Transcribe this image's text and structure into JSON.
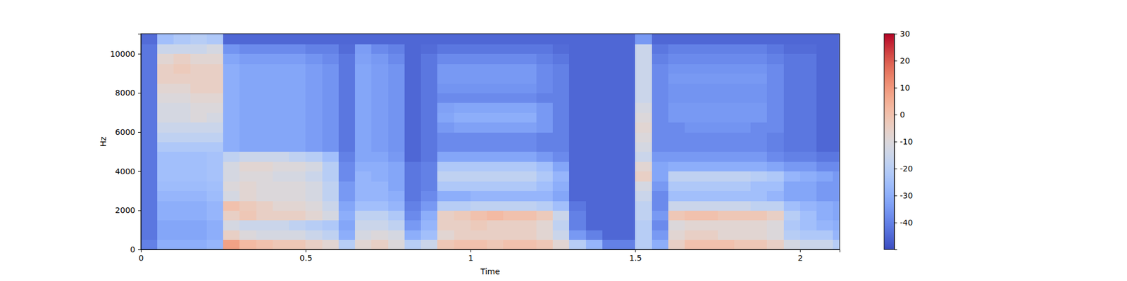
{
  "chart_data": {
    "type": "heatmap",
    "xlabel": "Time",
    "ylabel": "Hz",
    "xlim": [
      0,
      2.12
    ],
    "xticks": [
      0,
      0.5,
      1,
      1.5,
      2
    ],
    "ylim": [
      0,
      11025
    ],
    "yticks": [
      0,
      2000,
      4000,
      6000,
      8000,
      10000
    ],
    "grid": false,
    "x_bins": [
      0,
      0.05,
      0.1,
      0.15,
      0.2,
      0.25,
      0.3,
      0.35,
      0.4,
      0.45,
      0.5,
      0.55,
      0.6,
      0.65,
      0.7,
      0.75,
      0.8,
      0.85,
      0.9,
      0.95,
      1,
      1.05,
      1.1,
      1.15,
      1.2,
      1.25,
      1.3,
      1.35,
      1.4,
      1.45,
      1.5,
      1.55,
      1.6,
      1.65,
      1.7,
      1.75,
      1.8,
      1.85,
      1.9,
      1.95,
      2,
      2.05,
      2.1,
      2.12
    ],
    "y_bins": [
      0,
      500,
      1000,
      1500,
      2000,
      2500,
      3000,
      3500,
      4000,
      4500,
      5000,
      5500,
      6000,
      6500,
      7000,
      7500,
      8000,
      8500,
      9000,
      9500,
      10000,
      10500,
      11000,
      11025
    ],
    "cells": [
      [
        -40,
        -30,
        -30,
        -30,
        -28,
        8,
        2,
        0,
        -2,
        -2,
        -5,
        -8,
        -20,
        -8,
        -5,
        -10,
        -20,
        -15,
        -2,
        0,
        0,
        -2,
        0,
        0,
        -2,
        -8,
        -20,
        -28,
        -40,
        -40,
        -20,
        -30,
        -5,
        0,
        0,
        0,
        -2,
        -2,
        -5,
        -12,
        -15,
        -15,
        -20
      ],
      [
        -42,
        -32,
        -32,
        -32,
        -30,
        -5,
        -10,
        -12,
        -12,
        -12,
        -15,
        -18,
        -30,
        -12,
        -10,
        -12,
        -30,
        -25,
        -8,
        -5,
        -5,
        -5,
        -5,
        -5,
        -8,
        -15,
        -35,
        -40,
        -45,
        -45,
        -20,
        -35,
        -8,
        -5,
        -5,
        -8,
        -8,
        -8,
        -10,
        -20,
        -22,
        -22,
        -28
      ],
      [
        -42,
        -32,
        -32,
        -32,
        -30,
        -12,
        -15,
        -15,
        -15,
        -18,
        -20,
        -22,
        -32,
        -15,
        -15,
        -18,
        -35,
        -28,
        -5,
        -5,
        -3,
        -5,
        -5,
        -5,
        -8,
        -18,
        -40,
        -45,
        -45,
        -45,
        -20,
        -38,
        -10,
        -8,
        -8,
        -8,
        -8,
        -8,
        -10,
        -22,
        -25,
        -28,
        -30
      ],
      [
        -42,
        -30,
        -30,
        -30,
        -28,
        -5,
        -2,
        -5,
        -5,
        -5,
        -8,
        -12,
        -30,
        -18,
        -18,
        -22,
        -38,
        -30,
        -5,
        -3,
        0,
        2,
        0,
        0,
        -3,
        -15,
        -40,
        -45,
        -45,
        -45,
        -18,
        -35,
        -2,
        0,
        0,
        -2,
        -2,
        -2,
        -5,
        -20,
        -25,
        -30,
        -32
      ],
      [
        -42,
        -30,
        -30,
        -30,
        -28,
        0,
        -3,
        -5,
        -8,
        -8,
        -10,
        -15,
        -32,
        -25,
        -25,
        -28,
        -40,
        -35,
        -20,
        -20,
        -18,
        -18,
        -18,
        -18,
        -20,
        -25,
        -42,
        -45,
        -45,
        -45,
        -18,
        -38,
        -15,
        -15,
        -15,
        -15,
        -15,
        -18,
        -18,
        -25,
        -28,
        -30,
        -32
      ],
      [
        -42,
        -28,
        -28,
        -28,
        -26,
        -12,
        -8,
        -10,
        -10,
        -10,
        -12,
        -18,
        -35,
        -28,
        -28,
        -30,
        -42,
        -38,
        -30,
        -30,
        -28,
        -28,
        -28,
        -28,
        -28,
        -32,
        -45,
        -45,
        -45,
        -45,
        -15,
        -38,
        -25,
        -25,
        -25,
        -25,
        -25,
        -25,
        -28,
        -32,
        -32,
        -35,
        -35
      ],
      [
        -42,
        -26,
        -26,
        -26,
        -25,
        -10,
        -8,
        -10,
        -10,
        -10,
        -12,
        -18,
        -35,
        -28,
        -28,
        -32,
        -42,
        -40,
        -22,
        -22,
        -22,
        -22,
        -22,
        -22,
        -25,
        -30,
        -45,
        -45,
        -45,
        -45,
        -12,
        -35,
        -22,
        -22,
        -22,
        -22,
        -22,
        -25,
        -25,
        -32,
        -32,
        -35,
        -35
      ],
      [
        -42,
        -25,
        -25,
        -25,
        -24,
        -12,
        -10,
        -10,
        -12,
        -12,
        -15,
        -20,
        -38,
        -28,
        -30,
        -32,
        -42,
        -40,
        -18,
        -18,
        -18,
        -18,
        -18,
        -18,
        -22,
        -28,
        -45,
        -45,
        -45,
        -45,
        -5,
        -32,
        -18,
        -18,
        -18,
        -18,
        -18,
        -20,
        -22,
        -28,
        -30,
        -32,
        -35
      ],
      [
        -42,
        -25,
        -25,
        -25,
        -24,
        -12,
        -8,
        -8,
        -10,
        -10,
        -12,
        -20,
        -38,
        -30,
        -30,
        -32,
        -42,
        -40,
        -22,
        -22,
        -22,
        -22,
        -22,
        -22,
        -25,
        -32,
        -45,
        -45,
        -45,
        -45,
        -8,
        -32,
        -30,
        -30,
        -30,
        -30,
        -30,
        -30,
        -32,
        -35,
        -35,
        -38,
        -38
      ],
      [
        -42,
        -25,
        -25,
        -25,
        -24,
        -18,
        -15,
        -15,
        -15,
        -18,
        -20,
        -25,
        -40,
        -32,
        -32,
        -35,
        -45,
        -42,
        -32,
        -32,
        -32,
        -32,
        -32,
        -32,
        -35,
        -38,
        -45,
        -45,
        -45,
        -45,
        -15,
        -35,
        -35,
        -35,
        -35,
        -35,
        -35,
        -35,
        -38,
        -40,
        -40,
        -42,
        -42
      ],
      [
        -42,
        -22,
        -22,
        -22,
        -22,
        -30,
        -32,
        -32,
        -32,
        -32,
        -34,
        -36,
        -42,
        -32,
        -34,
        -36,
        -45,
        -42,
        -38,
        -38,
        -38,
        -38,
        -38,
        -38,
        -40,
        -40,
        -45,
        -45,
        -45,
        -45,
        -12,
        -38,
        -38,
        -38,
        -38,
        -38,
        -38,
        -38,
        -40,
        -42,
        -42,
        -45,
        -45
      ],
      [
        -42,
        -18,
        -18,
        -18,
        -18,
        -30,
        -32,
        -32,
        -32,
        -32,
        -34,
        -36,
        -42,
        -32,
        -34,
        -36,
        -45,
        -42,
        -38,
        -38,
        -38,
        -38,
        -38,
        -38,
        -40,
        -40,
        -45,
        -45,
        -45,
        -45,
        -10,
        -38,
        -38,
        -38,
        -38,
        -38,
        -38,
        -38,
        -40,
        -42,
        -42,
        -45,
        -45
      ],
      [
        -42,
        -15,
        -15,
        -15,
        -15,
        -30,
        -32,
        -32,
        -32,
        -32,
        -34,
        -36,
        -42,
        -32,
        -34,
        -36,
        -45,
        -42,
        -35,
        -33,
        -33,
        -33,
        -33,
        -33,
        -35,
        -40,
        -45,
        -45,
        -45,
        -45,
        -8,
        -38,
        -38,
        -36,
        -36,
        -36,
        -36,
        -38,
        -38,
        -42,
        -42,
        -45,
        -45
      ],
      [
        -42,
        -12,
        -12,
        -10,
        -12,
        -30,
        -32,
        -32,
        -32,
        -32,
        -34,
        -36,
        -42,
        -32,
        -34,
        -36,
        -45,
        -42,
        -32,
        -30,
        -30,
        -30,
        -30,
        -30,
        -35,
        -40,
        -45,
        -45,
        -45,
        -45,
        -10,
        -38,
        -35,
        -35,
        -35,
        -35,
        -35,
        -35,
        -38,
        -42,
        -42,
        -45,
        -45
      ],
      [
        -42,
        -12,
        -12,
        -10,
        -10,
        -30,
        -32,
        -32,
        -32,
        -32,
        -34,
        -36,
        -42,
        -32,
        -34,
        -36,
        -45,
        -42,
        -33,
        -32,
        -32,
        -32,
        -32,
        -32,
        -35,
        -40,
        -45,
        -45,
        -45,
        -45,
        -12,
        -38,
        -35,
        -35,
        -35,
        -35,
        -35,
        -35,
        -38,
        -42,
        -42,
        -45,
        -45
      ],
      [
        -42,
        -10,
        -10,
        -8,
        -8,
        -30,
        -32,
        -32,
        -32,
        -32,
        -34,
        -36,
        -42,
        -32,
        -34,
        -36,
        -45,
        -42,
        -38,
        -38,
        -38,
        -38,
        -38,
        -38,
        -40,
        -40,
        -45,
        -45,
        -45,
        -45,
        -15,
        -38,
        -36,
        -36,
        -36,
        -36,
        -36,
        -36,
        -38,
        -42,
        -42,
        -45,
        -45
      ],
      [
        -42,
        -8,
        -8,
        -5,
        -5,
        -30,
        -32,
        -32,
        -32,
        -32,
        -34,
        -36,
        -42,
        -32,
        -34,
        -36,
        -45,
        -42,
        -36,
        -36,
        -36,
        -36,
        -36,
        -36,
        -38,
        -40,
        -45,
        -45,
        -45,
        -45,
        -15,
        -38,
        -36,
        -36,
        -36,
        -36,
        -36,
        -36,
        -38,
        -42,
        -42,
        -45,
        -45
      ],
      [
        -42,
        -5,
        -5,
        -5,
        -5,
        -30,
        -32,
        -32,
        -32,
        -32,
        -34,
        -36,
        -42,
        -32,
        -34,
        -36,
        -45,
        -42,
        -35,
        -35,
        -35,
        -35,
        -35,
        -35,
        -38,
        -40,
        -45,
        -45,
        -45,
        -45,
        -15,
        -38,
        -35,
        -35,
        -35,
        -35,
        -35,
        -35,
        -38,
        -42,
        -42,
        -45,
        -45
      ],
      [
        -42,
        -5,
        -3,
        -5,
        -5,
        -30,
        -32,
        -32,
        -32,
        -32,
        -34,
        -36,
        -42,
        -32,
        -34,
        -36,
        -45,
        -42,
        -35,
        -35,
        -35,
        -35,
        -35,
        -35,
        -38,
        -40,
        -45,
        -45,
        -45,
        -45,
        -15,
        -38,
        -36,
        -36,
        -36,
        -36,
        -36,
        -36,
        -38,
        -42,
        -42,
        -45,
        -45
      ],
      [
        -42,
        -8,
        -5,
        -8,
        -8,
        -32,
        -34,
        -34,
        -34,
        -34,
        -36,
        -38,
        -42,
        -33,
        -35,
        -38,
        -45,
        -42,
        -38,
        -38,
        -38,
        -38,
        -38,
        -38,
        -40,
        -42,
        -45,
        -45,
        -45,
        -45,
        -15,
        -40,
        -38,
        -38,
        -38,
        -38,
        -38,
        -38,
        -40,
        -42,
        -42,
        -45,
        -45
      ],
      [
        -42,
        -15,
        -15,
        -15,
        -12,
        -36,
        -38,
        -38,
        -38,
        -38,
        -40,
        -40,
        -44,
        -34,
        -38,
        -40,
        -45,
        -44,
        -42,
        -42,
        -42,
        -42,
        -42,
        -42,
        -42,
        -44,
        -45,
        -45,
        -45,
        -45,
        -15,
        -42,
        -40,
        -40,
        -40,
        -40,
        -40,
        -40,
        -42,
        -44,
        -44,
        -45,
        -45
      ],
      [
        -44,
        -25,
        -22,
        -20,
        -22,
        -45,
        -45,
        -45,
        -45,
        -45,
        -45,
        -45,
        -45,
        -45,
        -45,
        -45,
        -45,
        -45,
        -45,
        -45,
        -45,
        -45,
        -45,
        -45,
        -45,
        -45,
        -45,
        -45,
        -45,
        -45,
        -35,
        -45,
        -45,
        -45,
        -45,
        -45,
        -45,
        -45,
        -45,
        -45,
        -45,
        -45,
        -45
      ],
      [
        -45,
        -35,
        -35,
        -35,
        -35,
        -45,
        -45,
        -45,
        -45,
        -45,
        -45,
        -45,
        -45,
        -45,
        -45,
        -45,
        -45,
        -45,
        -45,
        -45,
        -45,
        -45,
        -45,
        -45,
        -45,
        -45,
        -45,
        -45,
        -45,
        -45,
        -45,
        -45,
        -45,
        -45,
        -45,
        -45,
        -45,
        -45,
        -45,
        -45,
        -45,
        -45,
        -45
      ]
    ],
    "colorbar": {
      "range": [
        -50,
        30
      ],
      "ticks": [
        -40,
        -30,
        -20,
        -10,
        0,
        10,
        20,
        30
      ]
    }
  }
}
